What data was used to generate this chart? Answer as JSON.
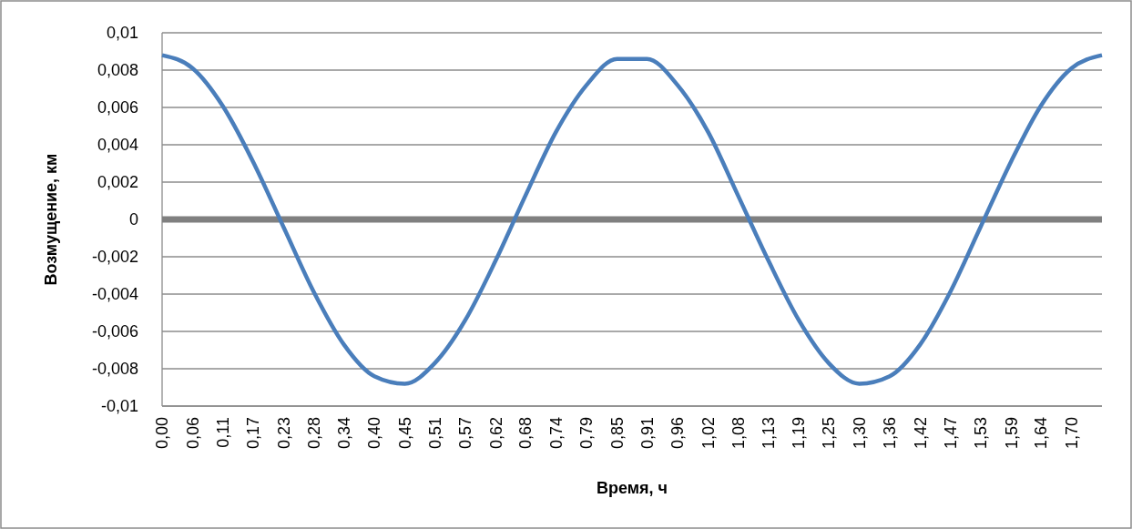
{
  "chart_data": {
    "type": "line",
    "xlabel": "Время, ч",
    "ylabel": "Возмущение, км",
    "x": [
      0,
      0.057,
      0.113,
      0.17,
      0.227,
      0.284,
      0.34,
      0.397,
      0.454,
      0.51,
      0.567,
      0.624,
      0.68,
      0.737,
      0.794,
      0.851,
      0.907,
      0.964,
      1.021,
      1.077,
      1.134,
      1.191,
      1.247,
      1.304,
      1.361,
      1.418,
      1.474,
      1.531,
      1.588,
      1.644,
      1.701,
      1.758
    ],
    "series": [
      {
        "color": "#4a7ebb",
        "values": [
          0.0088,
          0.0081,
          0.0061,
          0.0031,
          -0.0004,
          -0.0039,
          -0.0067,
          -0.0084,
          -0.0088,
          -0.0077,
          -0.0054,
          -0.0022,
          0.0013,
          0.0047,
          0.0072,
          0.0086,
          0.0086,
          0.0072,
          0.0047,
          0.0013,
          -0.0022,
          -0.0054,
          -0.0077,
          -0.0088,
          -0.0084,
          -0.0067,
          -0.0039,
          -0.0004,
          0.0031,
          0.0061,
          0.0081,
          0.0088
        ]
      },
      {
        "color": "#808080",
        "values": [
          0,
          0,
          0,
          0,
          0,
          0,
          0,
          0,
          0,
          0,
          0,
          0,
          0,
          0,
          0,
          0,
          0,
          0,
          0,
          0,
          0,
          0,
          0,
          0,
          0,
          0,
          0,
          0,
          0,
          0,
          0,
          0
        ]
      }
    ],
    "xlim": [
      0,
      1.758
    ],
    "xticks": [
      {
        "value": 0,
        "label": "0,00"
      },
      {
        "value": 0.057,
        "label": "0,06"
      },
      {
        "value": 0.113,
        "label": "0,11"
      },
      {
        "value": 0.17,
        "label": "0,17"
      },
      {
        "value": 0.227,
        "label": "0,23"
      },
      {
        "value": 0.284,
        "label": "0,28"
      },
      {
        "value": 0.34,
        "label": "0,34"
      },
      {
        "value": 0.397,
        "label": "0,40"
      },
      {
        "value": 0.454,
        "label": "0,45"
      },
      {
        "value": 0.51,
        "label": "0,51"
      },
      {
        "value": 0.567,
        "label": "0,57"
      },
      {
        "value": 0.624,
        "label": "0,62"
      },
      {
        "value": 0.68,
        "label": "0,68"
      },
      {
        "value": 0.737,
        "label": "0,74"
      },
      {
        "value": 0.794,
        "label": "0,79"
      },
      {
        "value": 0.851,
        "label": "0,85"
      },
      {
        "value": 0.907,
        "label": "0,91"
      },
      {
        "value": 0.964,
        "label": "0,96"
      },
      {
        "value": 1.021,
        "label": "1,02"
      },
      {
        "value": 1.077,
        "label": "1,08"
      },
      {
        "value": 1.134,
        "label": "1,13"
      },
      {
        "value": 1.191,
        "label": "1,19"
      },
      {
        "value": 1.247,
        "label": "1,25"
      },
      {
        "value": 1.304,
        "label": "1,30"
      },
      {
        "value": 1.361,
        "label": "1,36"
      },
      {
        "value": 1.418,
        "label": "1,42"
      },
      {
        "value": 1.474,
        "label": "1,47"
      },
      {
        "value": 1.531,
        "label": "1,53"
      },
      {
        "value": 1.588,
        "label": "1,59"
      },
      {
        "value": 1.644,
        "label": "1,64"
      },
      {
        "value": 1.701,
        "label": "1,70"
      }
    ],
    "ylim": [
      -0.01,
      0.01
    ],
    "yticks": [
      {
        "value": -0.01,
        "label": "-0,01"
      },
      {
        "value": -0.008,
        "label": "-0,008"
      },
      {
        "value": -0.006,
        "label": "-0,006"
      },
      {
        "value": -0.004,
        "label": "-0,004"
      },
      {
        "value": -0.002,
        "label": "-0,002"
      },
      0,
      {
        "value": 0.002,
        "label": "0,002"
      },
      {
        "value": 0.004,
        "label": "0,004"
      },
      {
        "value": 0.006,
        "label": "0,006"
      },
      {
        "value": 0.008,
        "label": "0,008"
      },
      {
        "value": 0.01,
        "label": "0,01"
      }
    ],
    "grid": "y",
    "line_style": "solid"
  }
}
